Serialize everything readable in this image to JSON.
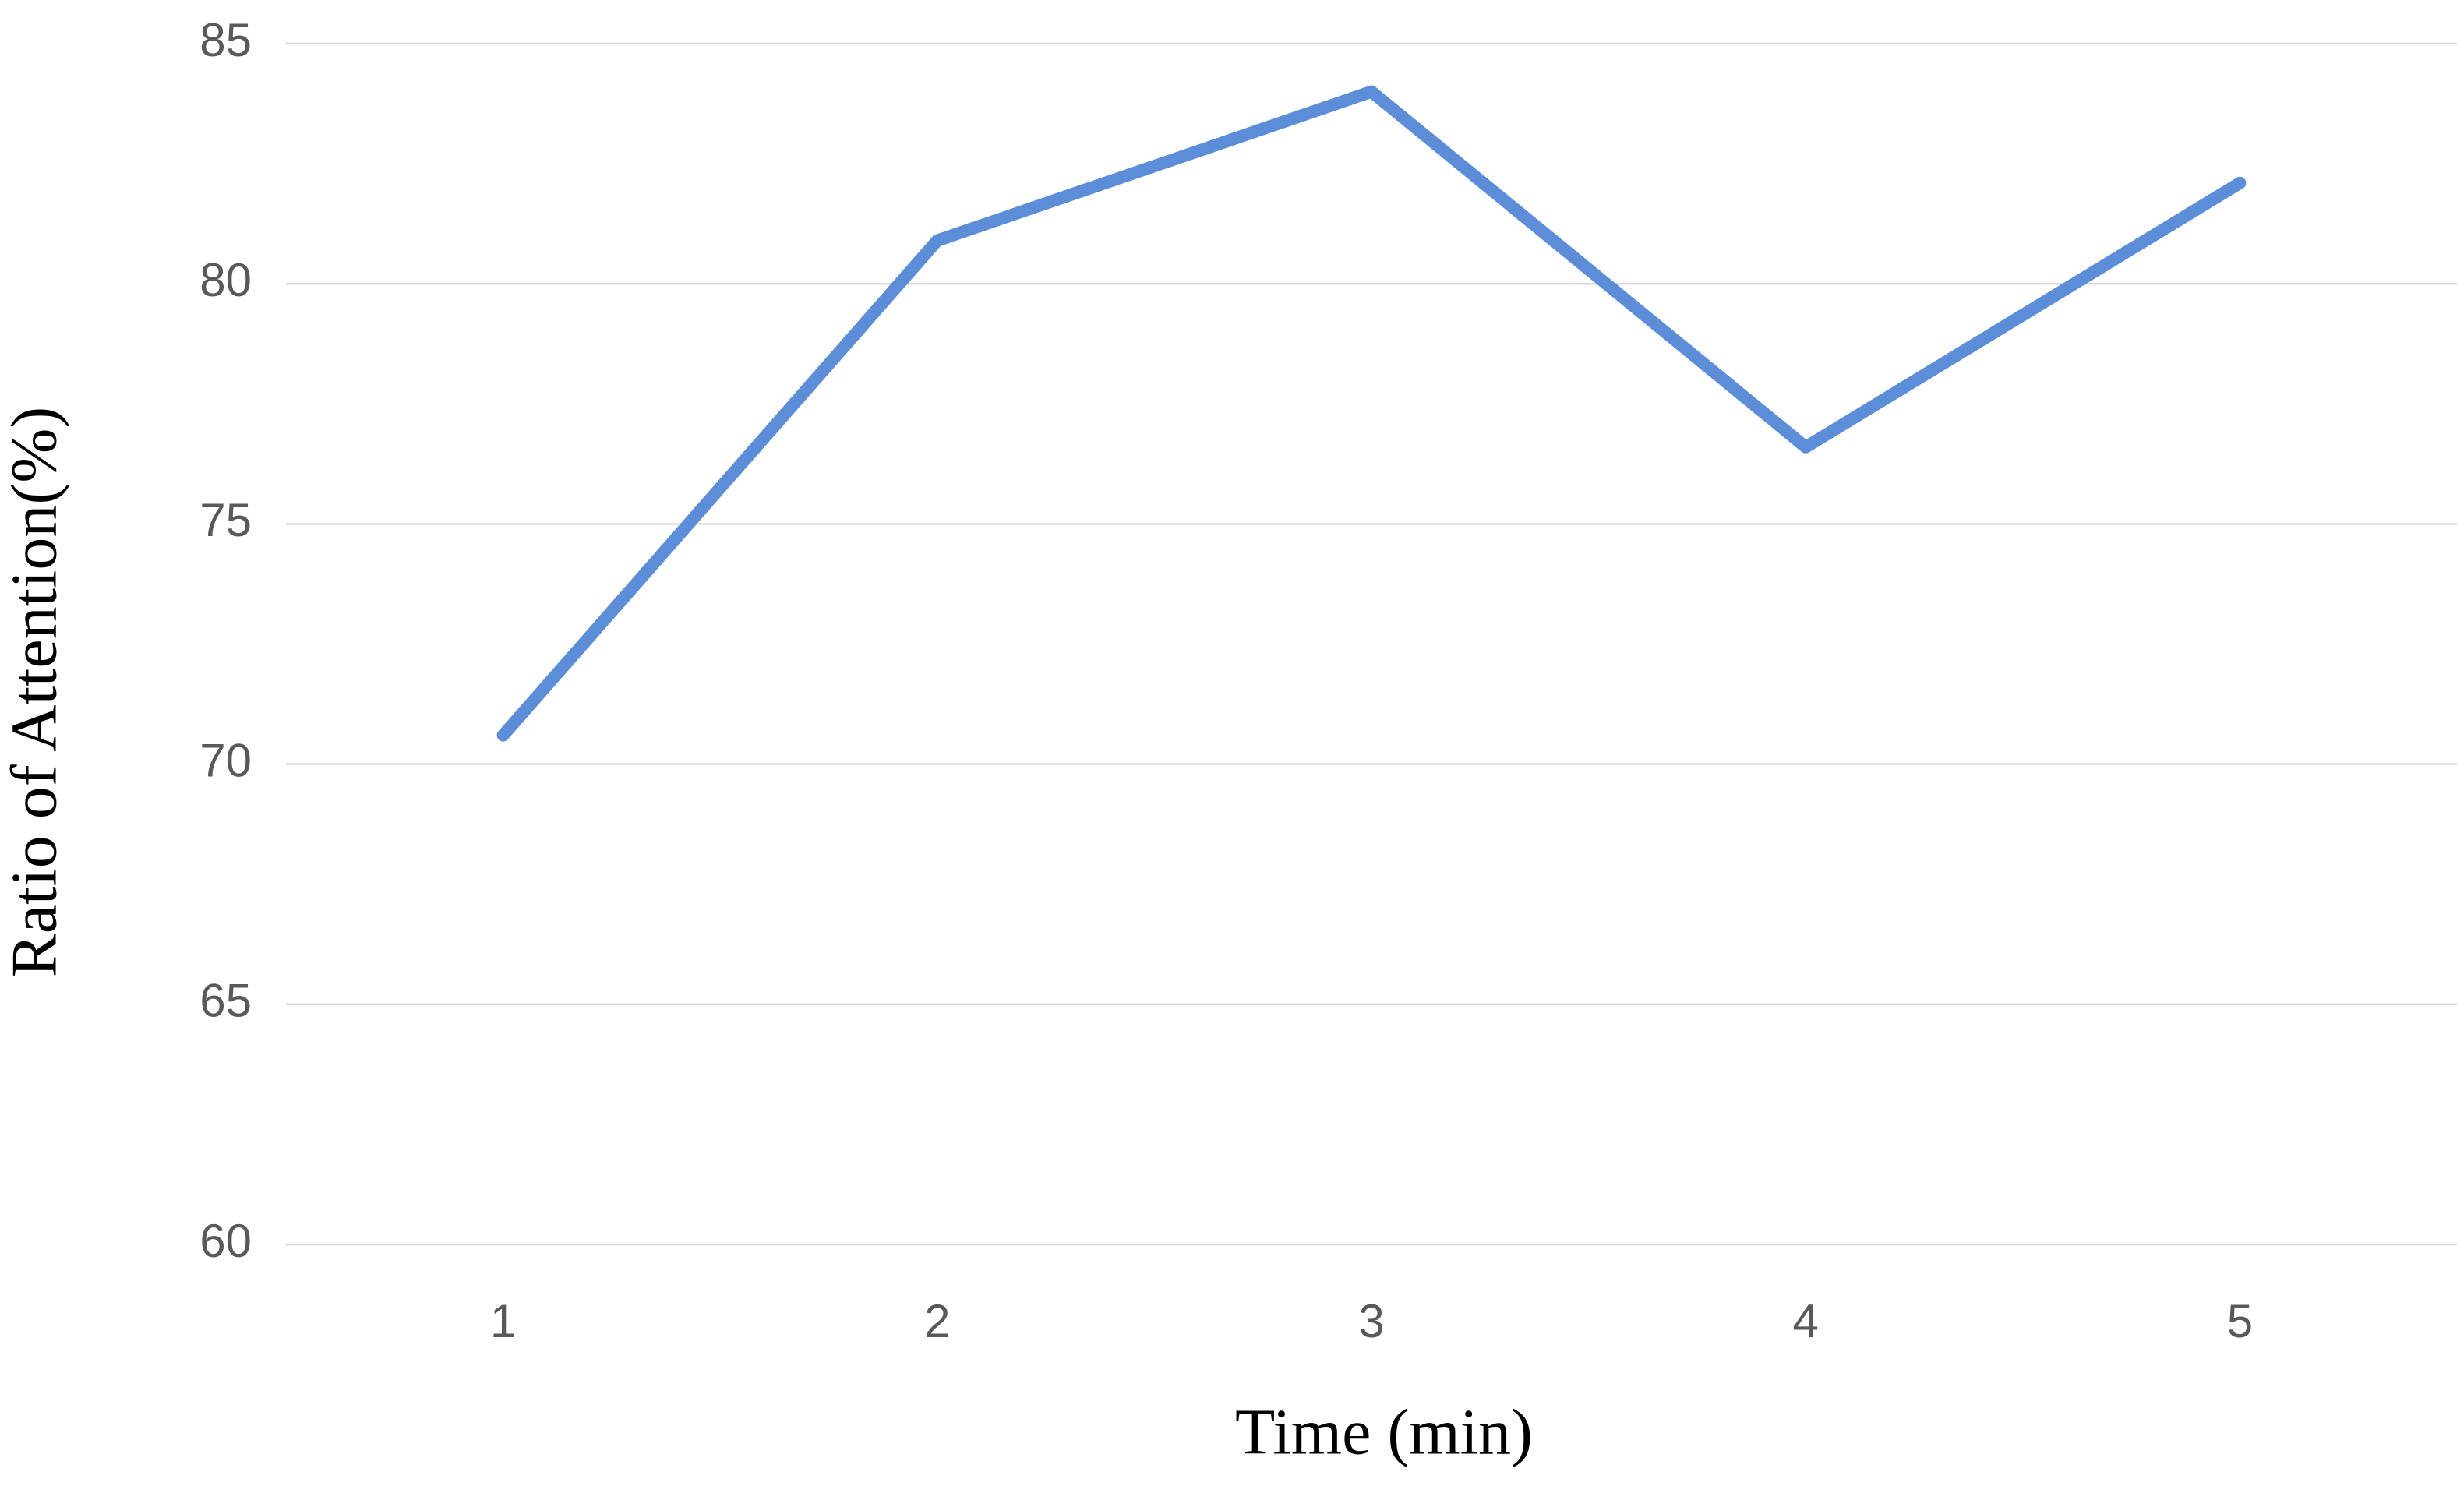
{
  "chart_data": {
    "type": "line",
    "x_label": "Time (min)",
    "y_label": "Ratio of Attention(%)",
    "categories": [
      "1",
      "2",
      "3",
      "4",
      "5"
    ],
    "series": [
      {
        "name": "Ratio of Attention",
        "color": "#5b8dd9",
        "values": [
          70.6,
          80.9,
          84.0,
          76.6,
          82.1
        ]
      }
    ],
    "ylim": [
      60,
      85
    ],
    "yticks": [
      60,
      65,
      70,
      75,
      80,
      85
    ],
    "grid": true
  }
}
